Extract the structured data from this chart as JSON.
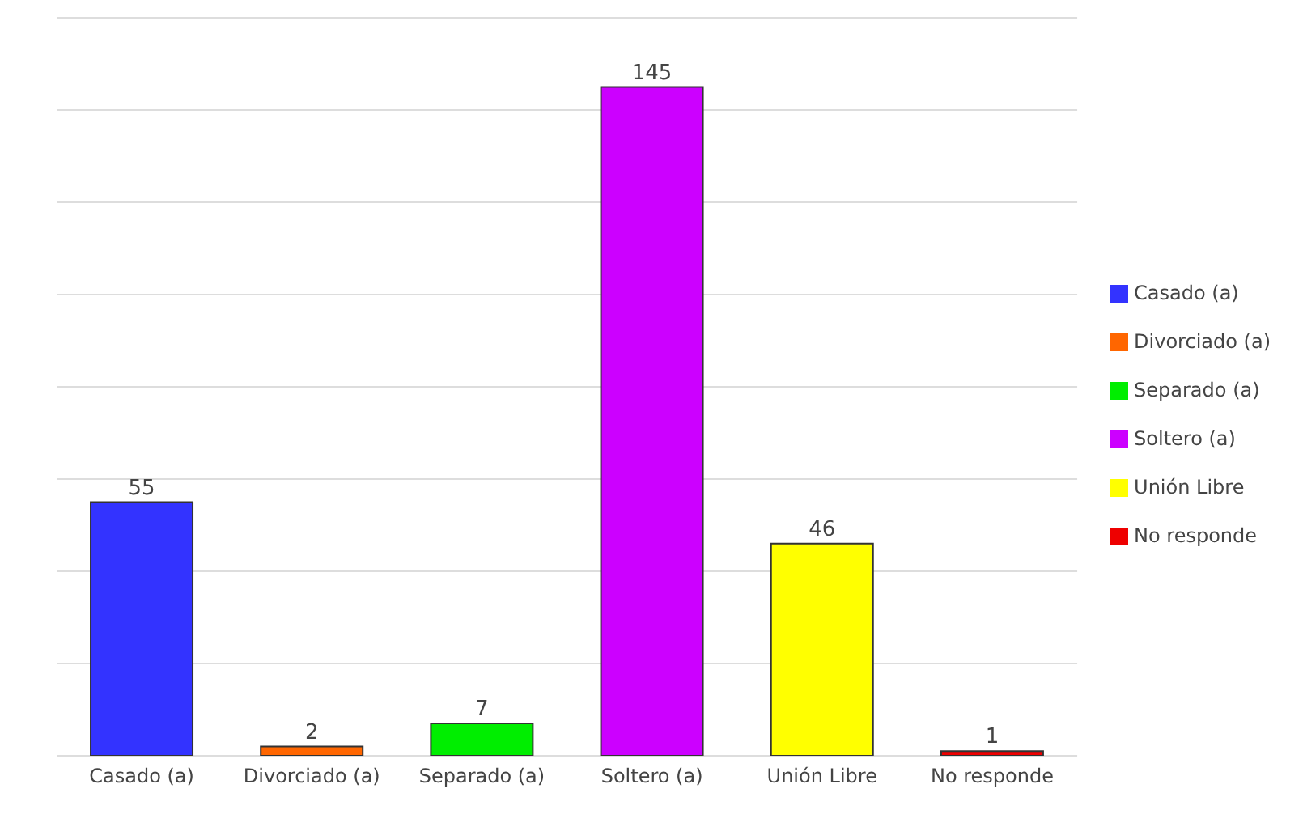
{
  "chart_data": {
    "type": "bar",
    "categories": [
      "Casado (a)",
      "Divorciado (a)",
      "Separado (a)",
      "Soltero (a)",
      "Unión Libre",
      "No responde"
    ],
    "series": [
      {
        "name": "Casado (a)",
        "color": "#3333ff",
        "values": [
          55,
          null,
          null,
          null,
          null,
          null
        ]
      },
      {
        "name": "Divorciado (a)",
        "color": "#ff6600",
        "values": [
          null,
          2,
          null,
          null,
          null,
          null
        ]
      },
      {
        "name": "Separado (a)",
        "color": "#00ee00",
        "values": [
          null,
          null,
          7,
          null,
          null,
          null
        ]
      },
      {
        "name": "Soltero (a)",
        "color": "#cc00ff",
        "values": [
          null,
          null,
          null,
          145,
          null,
          null
        ]
      },
      {
        "name": "Unión Libre",
        "color": "#ffff00",
        "values": [
          null,
          null,
          null,
          null,
          46,
          null
        ]
      },
      {
        "name": "No responde",
        "color": "#ee0000",
        "values": [
          null,
          null,
          null,
          null,
          null,
          1
        ]
      }
    ],
    "stacked": true,
    "ylim": [
      0,
      160
    ],
    "yticks": [
      {
        "value": 0,
        "label": null
      },
      {
        "value": 20,
        "label": null
      },
      {
        "value": 40,
        "label": null
      },
      {
        "value": 60,
        "label": null
      },
      {
        "value": 80,
        "label": null
      },
      {
        "value": 100,
        "label": null
      },
      {
        "value": 120,
        "label": null
      },
      {
        "value": 140,
        "label": null
      },
      {
        "value": 160,
        "label": null
      }
    ],
    "tick_labels": "x",
    "grid": "y",
    "legend": "right",
    "data_labels": true
  }
}
